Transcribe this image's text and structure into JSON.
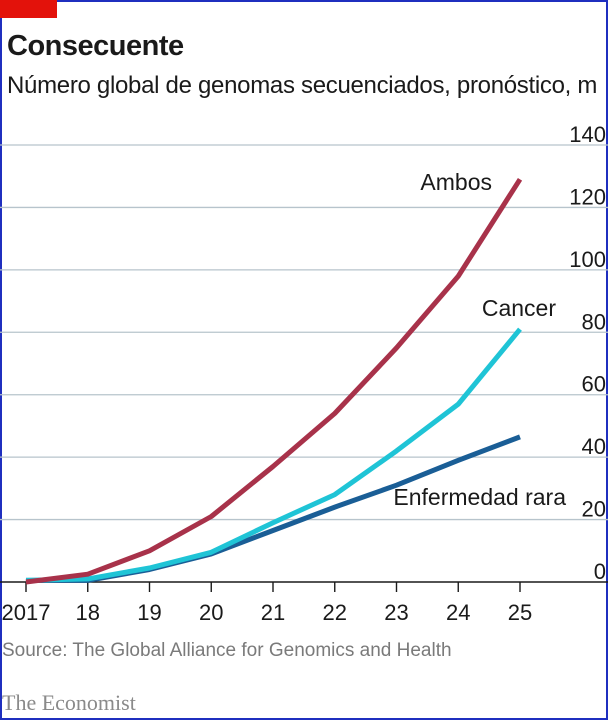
{
  "title": "Consecuente",
  "subtitle": "Número global de genomas secuenciados, pronóstico, m",
  "source": "Source: The Global Alliance for Genomics and Health",
  "publisher": "The Economist",
  "colors": {
    "brand_red": "#e3120b",
    "border": "#1f2fbf",
    "ambos": "#a8324a",
    "cancer": "#1fc4d6",
    "enfermedad_rara": "#1a5e96",
    "grid": "#b7c4cc",
    "axis": "#1a1a1a"
  },
  "chart_data": {
    "type": "line",
    "title": "Consecuente",
    "subtitle": "Número global de genomas secuenciados, pronóstico, m",
    "x": [
      2017,
      2018,
      2019,
      2020,
      2021,
      2022,
      2023,
      2024,
      2025
    ],
    "x_tick_labels": [
      "2017",
      "18",
      "19",
      "20",
      "21",
      "22",
      "23",
      "24",
      "25"
    ],
    "y_ticks": [
      0,
      20,
      40,
      60,
      80,
      100,
      120,
      140
    ],
    "y_tick_labels": [
      "0",
      "20",
      "40",
      "60",
      "80",
      "100",
      "120",
      "140"
    ],
    "ylim": [
      0,
      140
    ],
    "y_axis_side": "right",
    "grid": true,
    "legend": "inline labels",
    "series": [
      {
        "name": "Ambos",
        "color": "#a8324a",
        "values": [
          0,
          2.5,
          10,
          21,
          37,
          54,
          75,
          98,
          129
        ]
      },
      {
        "name": "Cancer",
        "color": "#1fc4d6",
        "values": [
          0.5,
          1,
          4.5,
          9.5,
          19,
          28,
          42,
          57,
          81
        ]
      },
      {
        "name": "Enfermedad rara",
        "color": "#1a5e96",
        "values": [
          0.5,
          0.5,
          4,
          9,
          16.5,
          24,
          31,
          39,
          46.5
        ]
      }
    ]
  }
}
